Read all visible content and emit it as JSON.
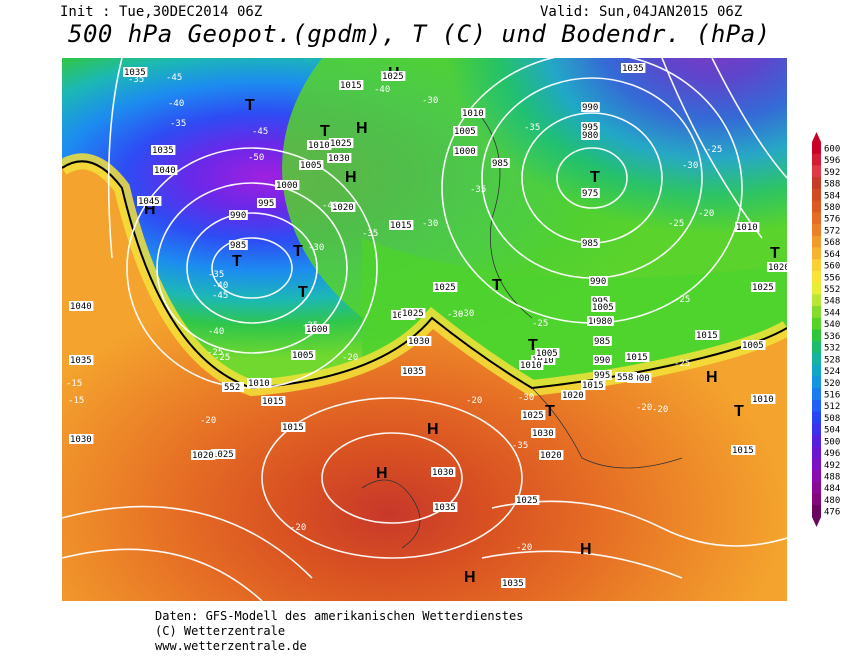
{
  "header": {
    "init": "Init : Tue,30DEC2014 06Z",
    "valid": "Valid: Sun,04JAN2015 06Z",
    "title": "500 hPa Geopot.(gpdm), T (C) und Bodendr. (hPa)"
  },
  "footer": {
    "line1": "Daten: GFS-Modell des amerikanischen Wetterdienstes",
    "line2": "(C) Wetterzentrale",
    "line3": "www.wetterzentrale.de"
  },
  "legend": {
    "levels": [
      "600",
      "596",
      "592",
      "588",
      "584",
      "580",
      "576",
      "572",
      "568",
      "564",
      "560",
      "556",
      "552",
      "548",
      "544",
      "540",
      "536",
      "532",
      "528",
      "524",
      "520",
      "516",
      "512",
      "508",
      "504",
      "500",
      "496",
      "492",
      "488",
      "484",
      "480",
      "476"
    ],
    "colors": [
      "#c8002a",
      "#d41c36",
      "#e03a46",
      "#c83a28",
      "#d24a22",
      "#dc5a22",
      "#e46c24",
      "#ec8028",
      "#f29a2c",
      "#f6b432",
      "#fad036",
      "#f8e438",
      "#e6ee36",
      "#b8e634",
      "#84dc2e",
      "#56d228",
      "#2cc63a",
      "#1cbc6e",
      "#14b49e",
      "#12a6c6",
      "#1694e0",
      "#1a7cf0",
      "#1e60f8",
      "#2646f6",
      "#3c32ee",
      "#5420e2",
      "#6a14d4",
      "#7c10c4",
      "#880cb0",
      "#8a0a96",
      "#82087c",
      "#6c0660"
    ]
  },
  "map": {
    "highs": [
      {
        "label": "H"
      },
      {
        "label": "H"
      },
      {
        "label": "H"
      },
      {
        "label": "H"
      },
      {
        "label": "H"
      },
      {
        "label": "H"
      },
      {
        "label": "H"
      },
      {
        "label": "H"
      },
      {
        "label": "H"
      }
    ],
    "lows": [
      {
        "label": "T"
      },
      {
        "label": "T"
      },
      {
        "label": "T"
      },
      {
        "label": "T"
      },
      {
        "label": "T"
      },
      {
        "label": "T"
      },
      {
        "label": "T"
      },
      {
        "label": "T"
      },
      {
        "label": "T"
      },
      {
        "label": "T"
      },
      {
        "label": "T"
      }
    ],
    "pressure_labels": [
      "1035",
      "1015",
      "1025",
      "1035",
      "1040",
      "1045",
      "1010",
      "1005",
      "1000",
      "995",
      "990",
      "985",
      "1025",
      "1030",
      "1020",
      "1015",
      "1040",
      "1035",
      "1030",
      "1025",
      "1020",
      "1015",
      "1010",
      "1005",
      "1000",
      "1025",
      "1030",
      "1035",
      "1015",
      "1020",
      "1025",
      "1030",
      "1035",
      "1025",
      "1035",
      "1035",
      "1010",
      "1005",
      "1000",
      "995",
      "990",
      "985",
      "980",
      "975",
      "985",
      "990",
      "995",
      "1000",
      "1005",
      "1010",
      "1015",
      "1020",
      "1025",
      "1030",
      "1020",
      "1025",
      "1010",
      "1015",
      "1005",
      "1010",
      "1015",
      "1000",
      "995",
      "990",
      "985",
      "980",
      "1005",
      "1010",
      "1015",
      "1020"
    ],
    "temp_labels": [
      "-35",
      "-45",
      "-50",
      "-45",
      "-40",
      "-35",
      "-30",
      "-40",
      "-35",
      "-30",
      "-35",
      "-40",
      "-45",
      "-40",
      "-35",
      "-25",
      "-20",
      "-15",
      "-15",
      "-20",
      "-25",
      "-30",
      "-35",
      "-40",
      "-45",
      "-30",
      "-25",
      "-20",
      "-25",
      "-30",
      "-35",
      "-25",
      "-20",
      "-30",
      "-25",
      "-20",
      "-20",
      "-20",
      "-20",
      "-30",
      "-35",
      "-25"
    ],
    "contour_552": "552",
    "contour_558": "558"
  }
}
